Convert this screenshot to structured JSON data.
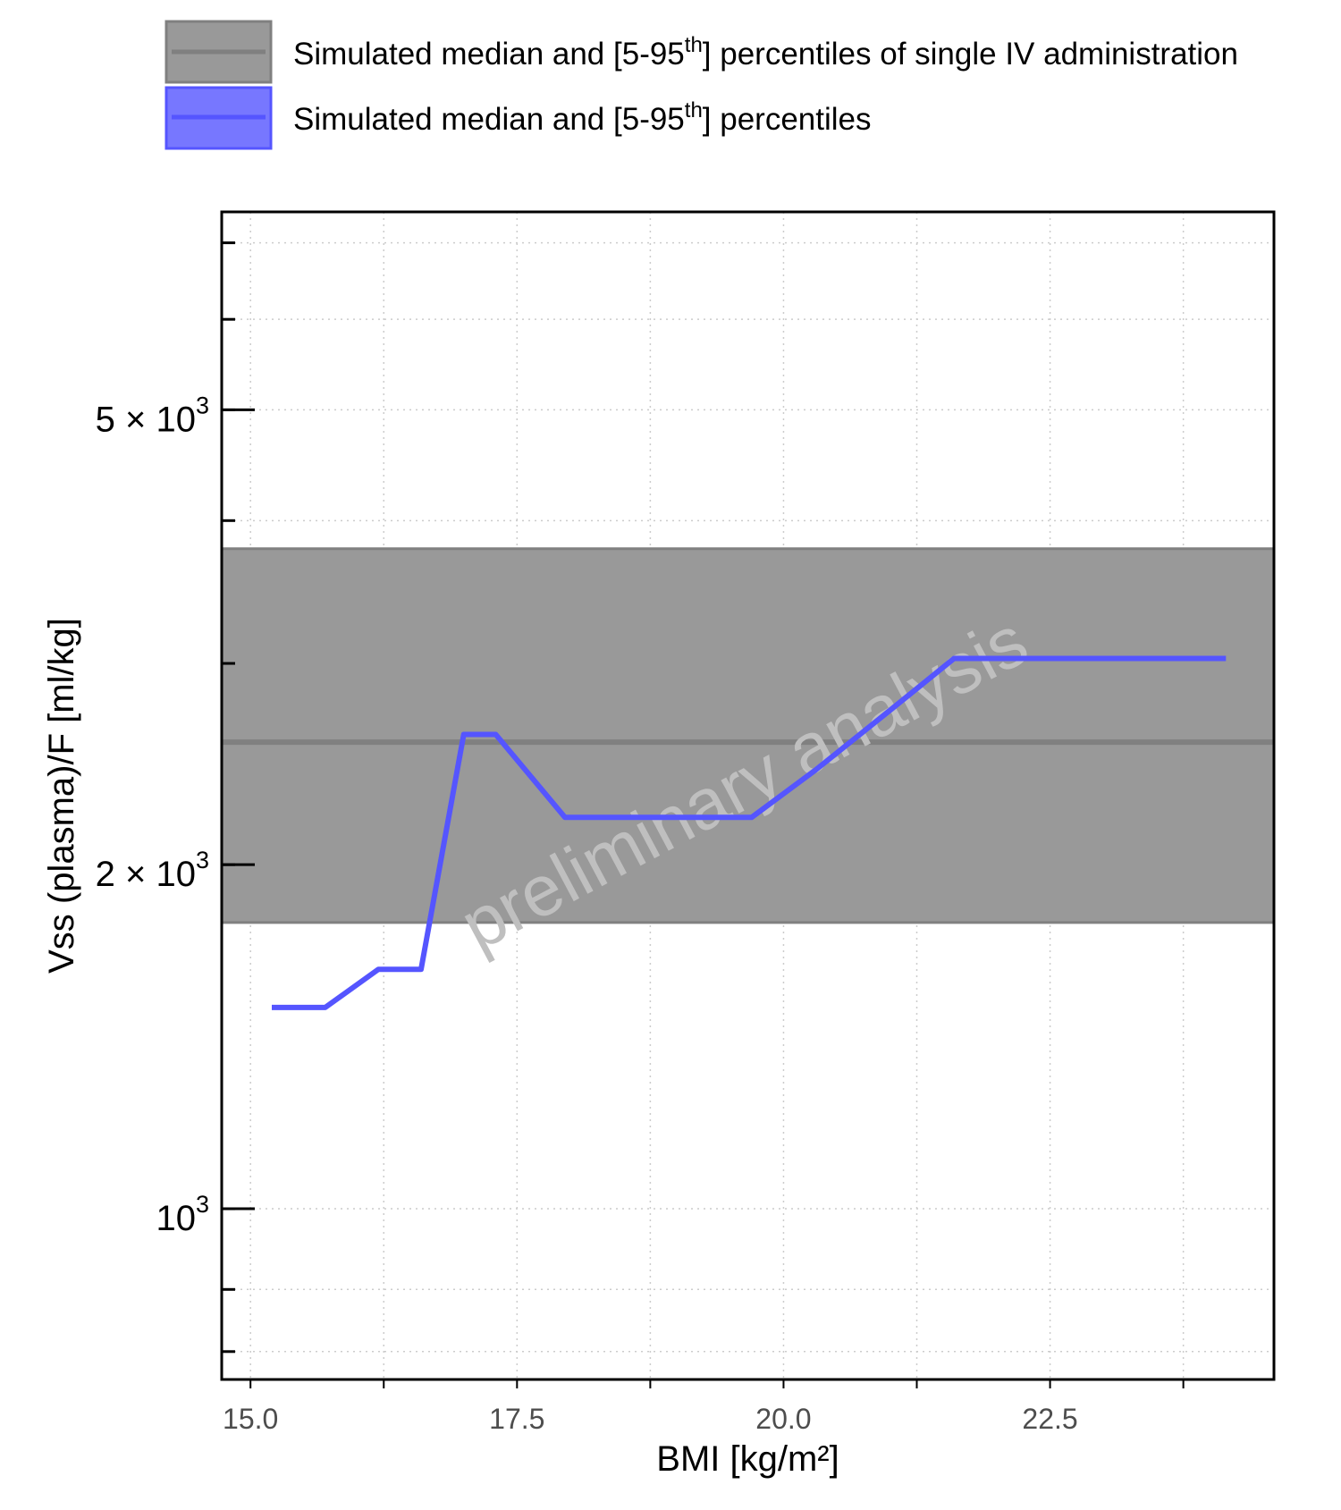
{
  "chart_data": {
    "type": "line",
    "xlabel": "BMI [kg/m²]",
    "ylabel": "Vss (plasma)/F [ml/kg]",
    "xlim": [
      14.73,
      24.6
    ],
    "ylim": [
      709,
      7450
    ],
    "y_scale": "log",
    "x_ticks": [
      {
        "value": 15.0,
        "label": "15.0"
      },
      {
        "value": 17.5,
        "label": "17.5"
      },
      {
        "value": 20.0,
        "label": "20.0"
      },
      {
        "value": 22.5,
        "label": "22.5"
      }
    ],
    "y_ticks": [
      {
        "value": 1000,
        "base": "10",
        "exp": "3"
      },
      {
        "value": 2000,
        "base": "2 × 10",
        "exp": "3"
      },
      {
        "value": 5000,
        "base": "5 × 10",
        "exp": "3"
      }
    ],
    "y_minor_ticks": [
      750,
      850,
      1000,
      2000,
      3000,
      4000,
      5000,
      6000,
      7000
    ],
    "grid": true,
    "legend": {
      "placement": "top",
      "entries": [
        {
          "text": "Simulated median and [5-95",
          "sup": "th",
          "text_after": "] percentiles of single IV administration",
          "line_color": "#808080",
          "fill_color": "#999999"
        },
        {
          "text": "Simulated median and [5-95",
          "sup": "th",
          "text_after": "] percentiles",
          "line_color": "#5555ff",
          "fill_color": "#7777ff"
        }
      ]
    },
    "band": {
      "x": [
        14.73,
        24.6
      ],
      "lower": 1780,
      "median": 2560,
      "upper": 3780
    },
    "series": [
      {
        "color": "#5555ff",
        "x": [
          15.2,
          15.7,
          16.2,
          16.6,
          17.0,
          17.3,
          17.95,
          18.5,
          19.0,
          19.7,
          20.3,
          21.0,
          21.6,
          22.0,
          22.5,
          23.0,
          23.5,
          24.15
        ],
        "y": [
          1500,
          1500,
          1620,
          1620,
          2600,
          2600,
          2200,
          2200,
          2200,
          2200,
          2420,
          2730,
          3030,
          3030,
          3030,
          3030,
          3030,
          3030
        ]
      }
    ],
    "annotations": [
      {
        "text": "preliminary analysis"
      }
    ]
  }
}
